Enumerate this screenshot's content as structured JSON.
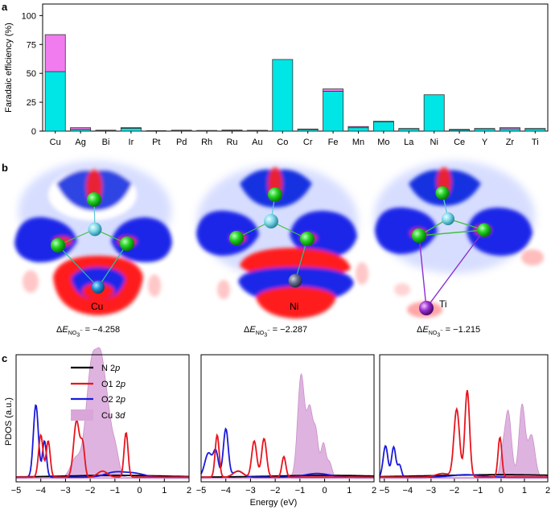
{
  "panel_a": {
    "letter": "a",
    "chart_data": {
      "type": "bar",
      "stacked": true,
      "categories": [
        "Cu",
        "Ag",
        "Bi",
        "Ir",
        "Pt",
        "Pd",
        "Rh",
        "Ru",
        "Au",
        "Co",
        "Cr",
        "Fe",
        "Mn",
        "Mo",
        "La",
        "Ni",
        "Ce",
        "Y",
        "Zr",
        "Ti"
      ],
      "ylabel": "Faradaic efficiency (%)",
      "xlabel": "",
      "ylim": [
        0,
        110
      ],
      "yticks": [
        0,
        25,
        50,
        75,
        100
      ],
      "series": [
        {
          "color": "#00e5e5",
          "values": [
            51.5,
            1.5,
            0.3,
            2.5,
            0,
            0.3,
            0,
            0.4,
            0.4,
            62,
            1.5,
            34.5,
            3,
            8,
            2,
            31.5,
            1,
            2,
            2,
            2
          ]
        },
        {
          "color": "#f07cf0",
          "values": [
            32,
            1.5,
            0.5,
            0.5,
            0,
            0.5,
            0.6,
            0.5,
            0.3,
            0,
            0.3,
            2,
            1,
            0.5,
            0.3,
            0,
            0.5,
            0.3,
            1,
            0.3
          ]
        }
      ],
      "grid": false
    }
  },
  "panel_b": {
    "letter": "b",
    "structures": [
      {
        "metal": "Cu",
        "dE": "−4.258"
      },
      {
        "metal": "Ni",
        "dE": "−2.287"
      },
      {
        "metal": "Ti",
        "dE": "−1.215"
      }
    ],
    "dE_prefix": "Δ",
    "dE_symbol": "E",
    "dE_sub": "NO",
    "dE_subsub": "3",
    "dE_charge": "−",
    "dE_eq": " = "
  },
  "panel_c": {
    "letter": "c",
    "ylabel": "PDOS (a.u.)",
    "xlabel": "Energy (eV)",
    "xticks": [
      "−5",
      "−4",
      "−3",
      "−2",
      "−1",
      "0",
      "1",
      "2"
    ],
    "legend": [
      {
        "label_main": "N 2",
        "label_it": "p",
        "color": "#000000",
        "type": "line"
      },
      {
        "label_main": "O1 2",
        "label_it": "p",
        "color": "#e8141e",
        "type": "line"
      },
      {
        "label_main": "O2 2",
        "label_it": "p",
        "color": "#1a1adb",
        "type": "line"
      },
      {
        "label_main": "Cu 3",
        "label_it": "d",
        "color": "#d9a6d9",
        "type": "fill"
      }
    ],
    "colors": {
      "N": "#000000",
      "O1": "#e8141e",
      "O2": "#1a1adb",
      "M3d": "#d9a6d9"
    }
  }
}
